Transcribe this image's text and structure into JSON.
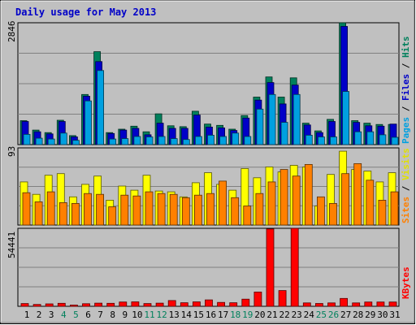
{
  "chart_data": {
    "type": "bar",
    "title": "Daily usage for May 2013",
    "categories": [
      "1",
      "2",
      "3",
      "4",
      "5",
      "6",
      "7",
      "8",
      "9",
      "10",
      "11",
      "12",
      "13",
      "14",
      "15",
      "16",
      "17",
      "18",
      "19",
      "20",
      "21",
      "22",
      "23",
      "24",
      "25",
      "26",
      "27",
      "28",
      "29",
      "30",
      "31"
    ],
    "weekend_days": [
      "4",
      "5",
      "11",
      "12",
      "18",
      "19",
      "25",
      "26"
    ],
    "panels": [
      {
        "id": "top",
        "scale_max_label": "2846",
        "ylim": [
          0,
          2846
        ],
        "ylabel": [
          {
            "text": "Pages",
            "color": "#00a0e0"
          },
          {
            "text": " / ",
            "color": "#000000"
          },
          {
            "text": "Files",
            "color": "#0000c8"
          },
          {
            "text": " / ",
            "color": "#000000"
          },
          {
            "text": "Hits",
            "color": "#00805c"
          }
        ],
        "series": [
          {
            "name": "Hits",
            "color": "#00805c",
            "values": [
              560,
              340,
              280,
              570,
              210,
              1170,
              2170,
              280,
              360,
              430,
              300,
              720,
              440,
              420,
              780,
              480,
              450,
              360,
              680,
              1110,
              1580,
              1110,
              1560,
              500,
              320,
              590,
              2846,
              560,
              500,
              470,
              470
            ]
          },
          {
            "name": "Files",
            "color": "#0000c8",
            "values": [
              540,
              300,
              250,
              540,
              180,
              1130,
              1940,
              260,
              340,
              380,
              230,
              500,
              380,
              380,
              690,
              410,
              390,
              330,
              620,
              1040,
              1450,
              950,
              1390,
              460,
              280,
              540,
              2760,
              520,
              440,
              430,
              480
            ]
          },
          {
            "name": "Pages",
            "color": "#00a0e0",
            "values": [
              240,
              150,
              130,
              270,
              100,
              1020,
              1730,
              130,
              140,
              190,
              180,
              190,
              140,
              120,
              190,
              220,
              190,
              270,
              190,
              830,
              1170,
              520,
              1170,
              220,
              180,
              180,
              1240,
              300,
              300,
              230,
              170
            ]
          }
        ]
      },
      {
        "id": "mid",
        "scale_max_label": "93",
        "ylim": [
          0,
          93
        ],
        "ylabel": [
          {
            "text": "Sites",
            "color": "#ff8000"
          },
          {
            "text": " / ",
            "color": "#000000"
          },
          {
            "text": "Visits",
            "color": "#e0e000"
          }
        ],
        "series": [
          {
            "name": "Visits",
            "color": "#ffff00",
            "values": [
              52,
              37,
              60,
              62,
              34,
              49,
              59,
              30,
              47,
              42,
              60,
              41,
              40,
              34,
              51,
              63,
              49,
              42,
              68,
              57,
              70,
              64,
              72,
              70,
              23,
              61,
              89,
              67,
              65,
              52,
              63
            ]
          },
          {
            "name": "Sites",
            "color": "#ff8000",
            "values": [
              39,
              28,
              40,
              27,
              26,
              38,
              37,
              22,
              36,
              35,
              40,
              38,
              37,
              33,
              36,
              38,
              53,
              33,
              23,
              38,
              52,
              67,
              59,
              73,
              34,
              26,
              62,
              74,
              54,
              30,
              40
            ]
          }
        ]
      },
      {
        "id": "bot",
        "scale_max_label": "54441",
        "ylim": [
          0,
          54441
        ],
        "ylabel": [
          {
            "text": "KBytes",
            "color": "#ff0000"
          }
        ],
        "series": [
          {
            "name": "KBytes",
            "color": "#ff0000",
            "values": [
              1900,
              1300,
              1700,
              2100,
              900,
              1800,
              2200,
              2100,
              3000,
              3100,
              1900,
              2200,
              4000,
              2500,
              3100,
              4500,
              2700,
              2500,
              5000,
              10000,
              54000,
              11000,
              54441,
              2400,
              2000,
              2400,
              5500,
              2400,
              3000,
              3000,
              3000
            ]
          }
        ]
      }
    ]
  }
}
